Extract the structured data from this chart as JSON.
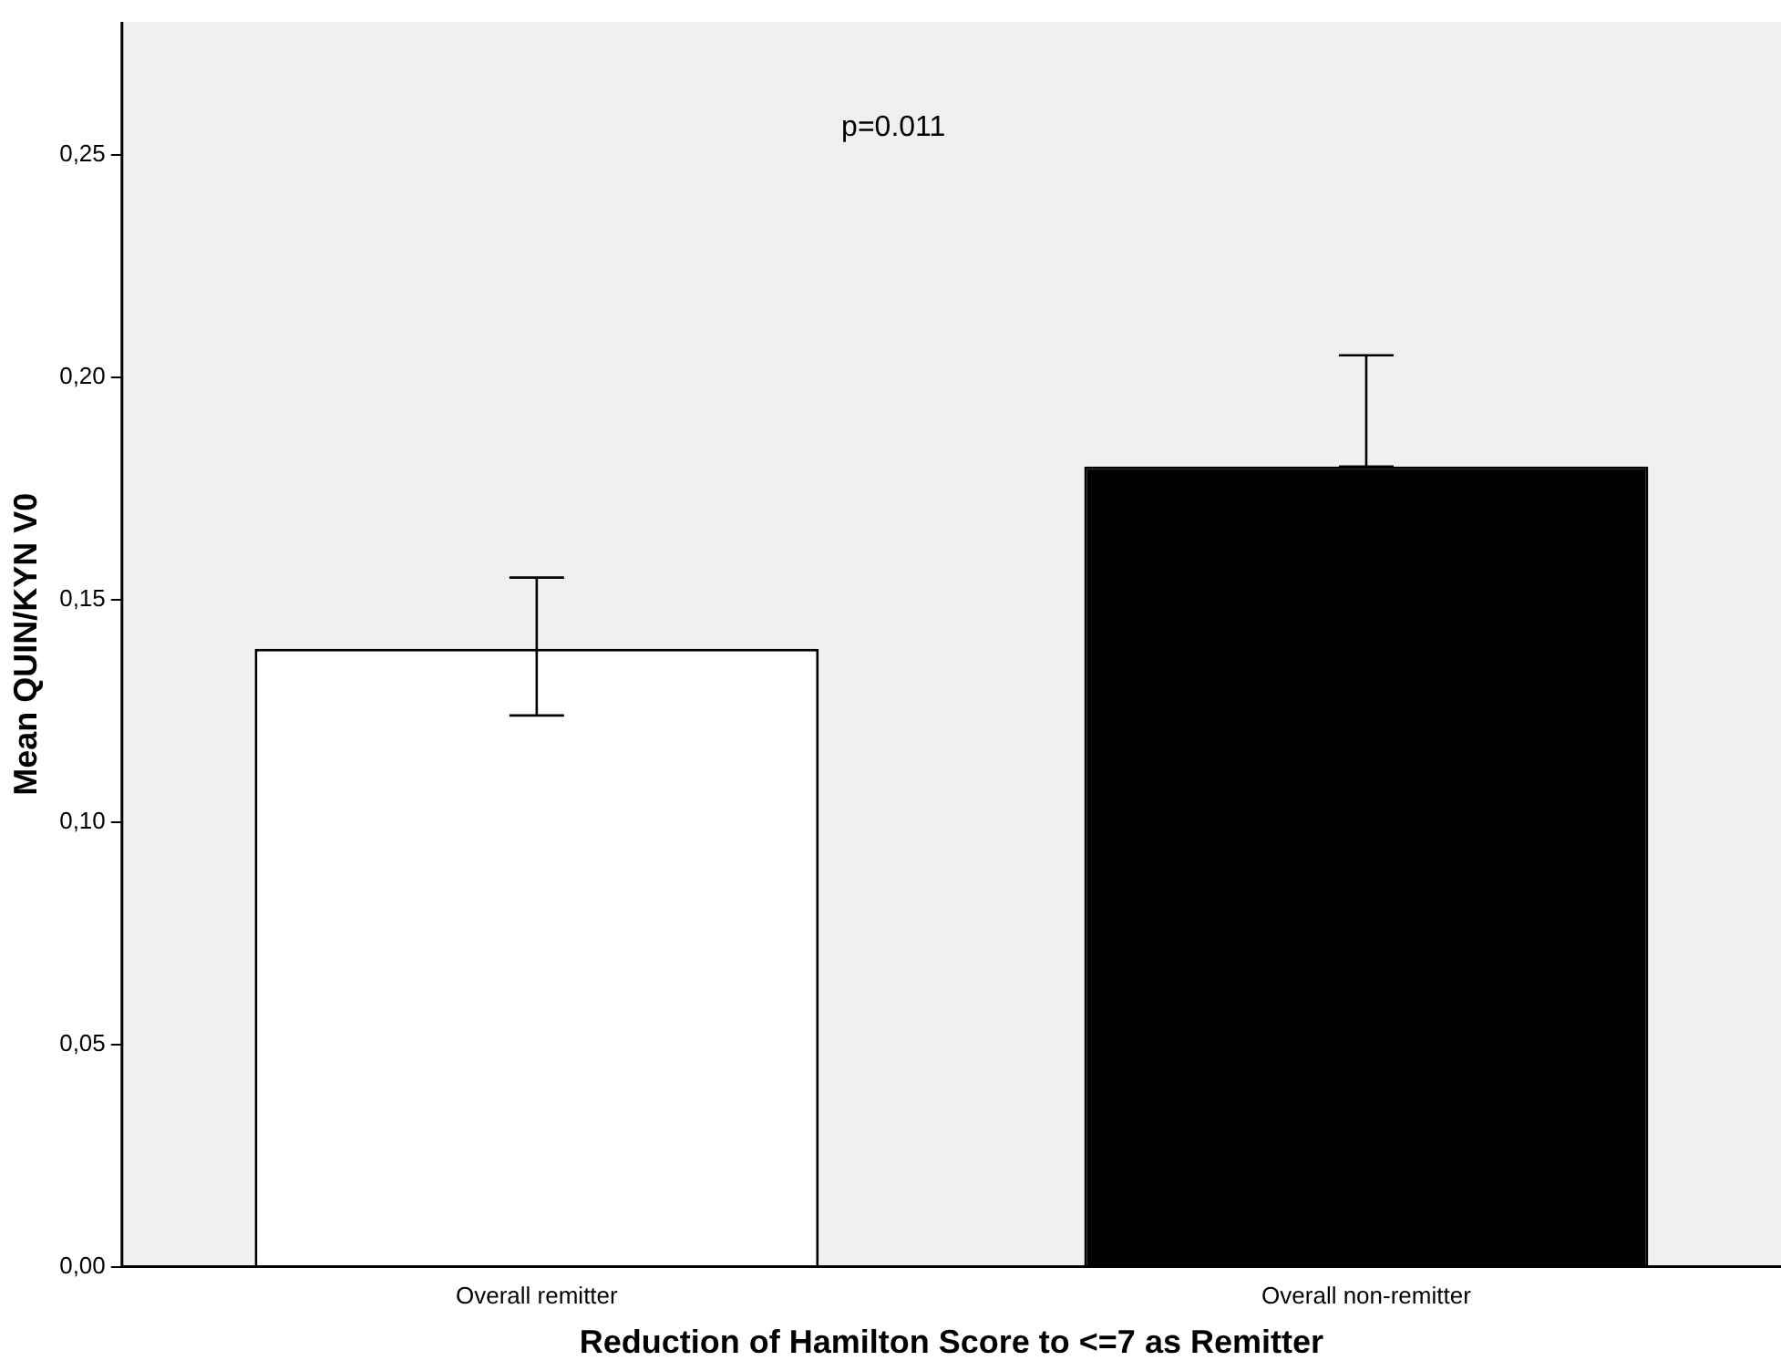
{
  "chart_data": {
    "type": "bar",
    "xlabel": "Reduction of Hamilton Score to <=7 as Remitter",
    "ylabel": "Mean QUIN/KYN V0",
    "categories": [
      "Overall remitter",
      "Overall non-remitter"
    ],
    "values": [
      0.139,
      0.18
    ],
    "colors": [
      "#ffffff",
      "#000000"
    ],
    "errors": [
      [
        0.124,
        0.155
      ],
      [
        0.18,
        0.205
      ]
    ],
    "ylim": [
      0,
      0.28
    ],
    "yticks": [
      {
        "value": 0,
        "label": "0,00"
      },
      {
        "value": 0.05,
        "label": "0,05"
      },
      {
        "value": 0.1,
        "label": "0,10"
      },
      {
        "value": 0.15,
        "label": "0,15"
      },
      {
        "value": 0.2,
        "label": "0,20"
      },
      {
        "value": 0.25,
        "label": "0,25"
      }
    ],
    "annotations": [
      "p=0.011"
    ],
    "grid": false,
    "legend": false
  }
}
